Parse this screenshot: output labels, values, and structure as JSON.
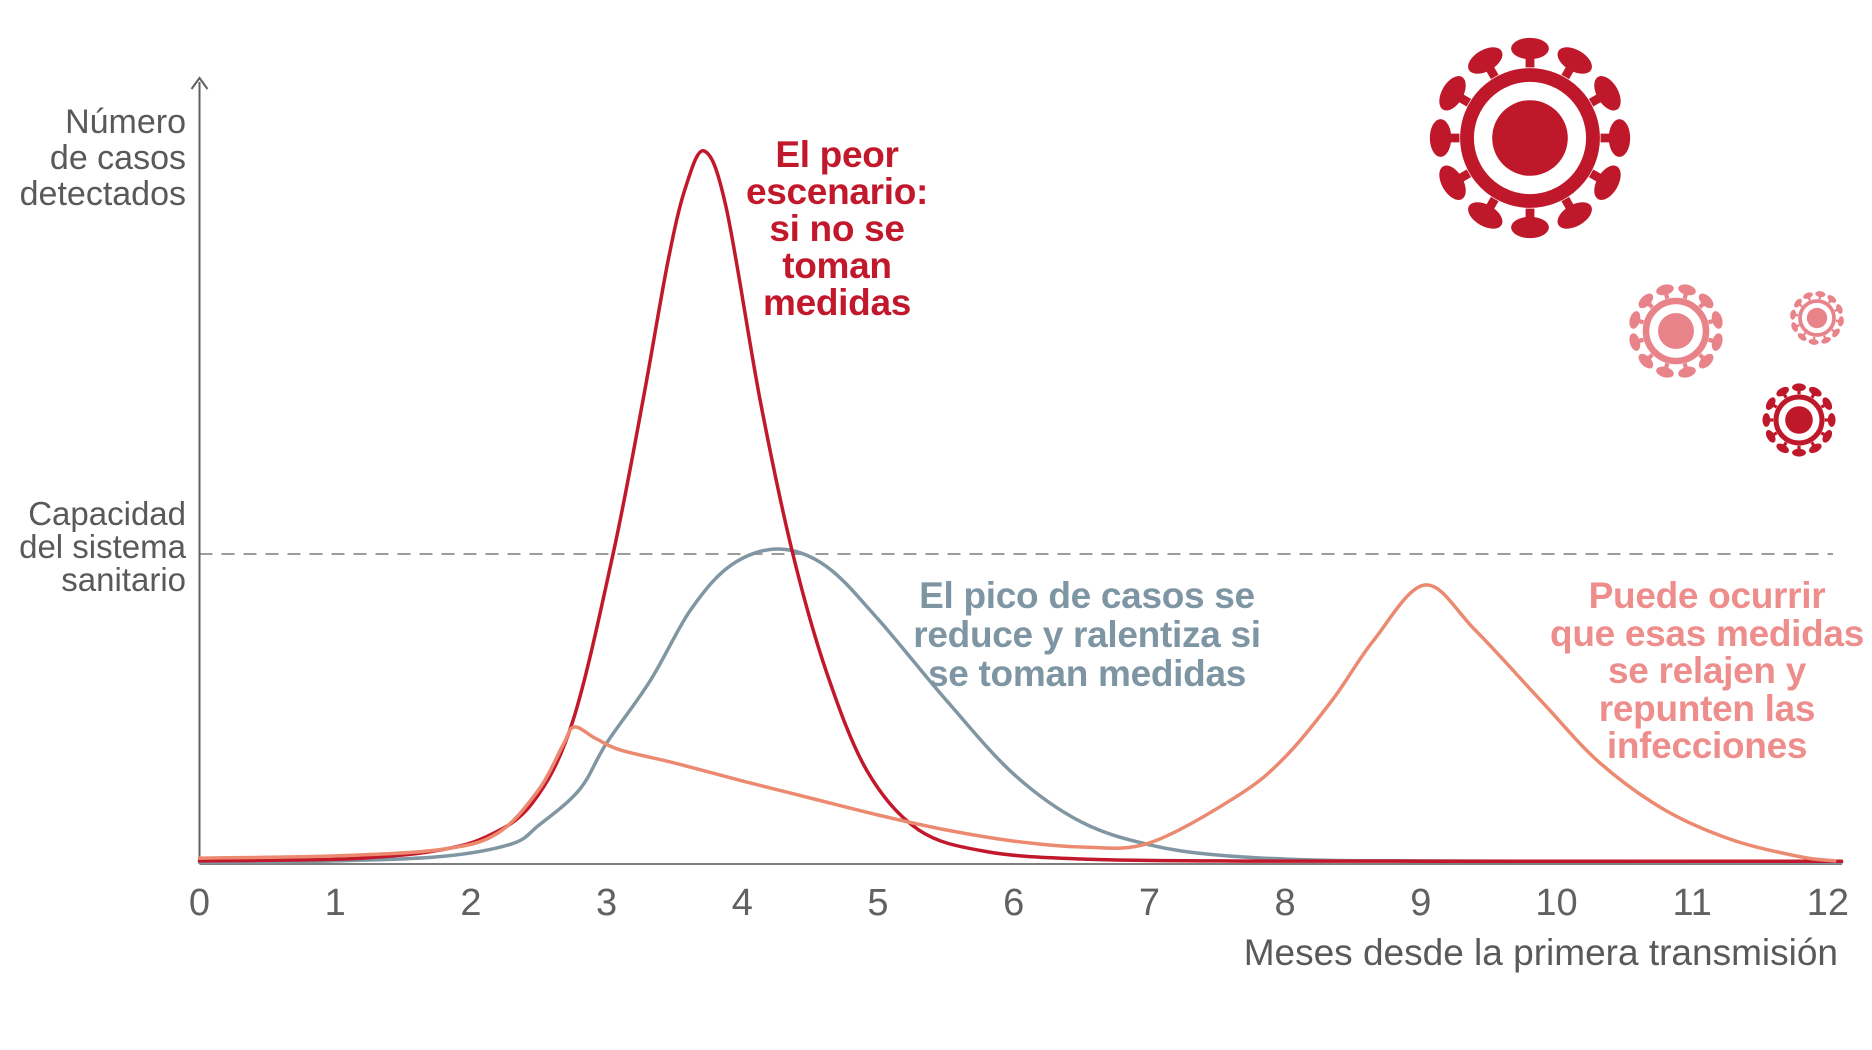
{
  "page": {
    "background": "#ffffff"
  },
  "y_axis": {
    "label": "Número\nde casos\ndetectados"
  },
  "x_axis": {
    "title": "Meses desde la primera transmisión"
  },
  "capacity": {
    "label": "Capacidad\ndel sistema\nsanitario"
  },
  "annotations": {
    "worst_case": {
      "text": "El peor\nescenario:\nsi no se\ntoman\nmedidas",
      "color": "#c2182b"
    },
    "with_measures": {
      "text": "El pico de casos se\nreduce y ralentiza si\nse toman medidas",
      "color": "#7e95a3"
    },
    "relaxed": {
      "text": "Puede ocurrir\nque esas medidas\nse relajen y\nrepunten las\ninfecciones",
      "color": "#ed8e8c"
    }
  },
  "icons": [
    {
      "name": "virus-icon-large",
      "color": "#c0182b"
    },
    {
      "name": "virus-icon-medium-pink",
      "color": "#e8838a"
    },
    {
      "name": "virus-icon-small-pink",
      "color": "#e8838a"
    },
    {
      "name": "virus-icon-small-dark",
      "color": "#c0182b"
    }
  ],
  "chart_data": {
    "type": "line",
    "title": "",
    "xlabel": "Meses desde la primera transmisión",
    "ylabel": "Número de casos detectados",
    "xlim": [
      0,
      12
    ],
    "ylim": [
      0,
      2.5
    ],
    "x_ticks": [
      0,
      1,
      2,
      3,
      4,
      5,
      6,
      7,
      8,
      9,
      10,
      11,
      12
    ],
    "grid": false,
    "capacity_line": {
      "label": "Capacidad del sistema sanitario",
      "value": 1.0,
      "style": "dashed",
      "color": "#9c9c9c"
    },
    "series": [
      {
        "name": "El peor escenario: si no se toman medidas",
        "color": "#c2182b",
        "points": [
          [
            0,
            0.01
          ],
          [
            0.7,
            0.013
          ],
          [
            1.2,
            0.019
          ],
          [
            1.7,
            0.04
          ],
          [
            2.1,
            0.085
          ],
          [
            2.45,
            0.195
          ],
          [
            2.75,
            0.46
          ],
          [
            3.05,
            1.005
          ],
          [
            3.27,
            1.5
          ],
          [
            3.45,
            1.94
          ],
          [
            3.58,
            2.18
          ],
          [
            3.72,
            2.3
          ],
          [
            3.88,
            2.12
          ],
          [
            4.13,
            1.5
          ],
          [
            4.37,
            1.005
          ],
          [
            4.62,
            0.62
          ],
          [
            4.92,
            0.3
          ],
          [
            5.3,
            0.11
          ],
          [
            5.8,
            0.04
          ],
          [
            6.5,
            0.016
          ],
          [
            7.5,
            0.01
          ],
          [
            9,
            0.009
          ],
          [
            12.1,
            0.009
          ]
        ]
      },
      {
        "name": "El pico de casos se reduce y ralentiza si se toman medidas",
        "color": "#8096a3",
        "points": [
          [
            0,
            0.006
          ],
          [
            1,
            0.01
          ],
          [
            1.8,
            0.025
          ],
          [
            2.3,
            0.065
          ],
          [
            2.5,
            0.125
          ],
          [
            2.8,
            0.24
          ],
          [
            3.0,
            0.39
          ],
          [
            3.32,
            0.59
          ],
          [
            3.62,
            0.82
          ],
          [
            3.92,
            0.965
          ],
          [
            4.27,
            1.016
          ],
          [
            4.62,
            0.96
          ],
          [
            5.0,
            0.79
          ],
          [
            5.5,
            0.53
          ],
          [
            6.0,
            0.29
          ],
          [
            6.5,
            0.135
          ],
          [
            7.0,
            0.062
          ],
          [
            7.5,
            0.029
          ],
          [
            8.2,
            0.013
          ],
          [
            9,
            0.01
          ],
          [
            12.1,
            0.006
          ]
        ]
      },
      {
        "name": "Puede ocurrir que esas medidas se relajen y repunten las infecciones",
        "color": "#eb8a70",
        "points": [
          [
            0,
            0.019
          ],
          [
            1,
            0.026
          ],
          [
            1.8,
            0.048
          ],
          [
            2.2,
            0.1
          ],
          [
            2.5,
            0.24
          ],
          [
            2.68,
            0.385
          ],
          [
            2.76,
            0.442
          ],
          [
            2.92,
            0.405
          ],
          [
            3.1,
            0.368
          ],
          [
            3.5,
            0.326
          ],
          [
            4.0,
            0.268
          ],
          [
            4.5,
            0.213
          ],
          [
            5.0,
            0.158
          ],
          [
            5.5,
            0.11
          ],
          [
            6.0,
            0.074
          ],
          [
            6.5,
            0.055
          ],
          [
            7.0,
            0.068
          ],
          [
            7.65,
            0.22
          ],
          [
            8.0,
            0.345
          ],
          [
            8.35,
            0.53
          ],
          [
            8.65,
            0.72
          ],
          [
            9.03,
            0.9
          ],
          [
            9.4,
            0.755
          ],
          [
            9.9,
            0.52
          ],
          [
            10.32,
            0.326
          ],
          [
            10.8,
            0.174
          ],
          [
            11.3,
            0.077
          ],
          [
            11.8,
            0.023
          ],
          [
            12.05,
            0.01
          ]
        ]
      }
    ]
  }
}
